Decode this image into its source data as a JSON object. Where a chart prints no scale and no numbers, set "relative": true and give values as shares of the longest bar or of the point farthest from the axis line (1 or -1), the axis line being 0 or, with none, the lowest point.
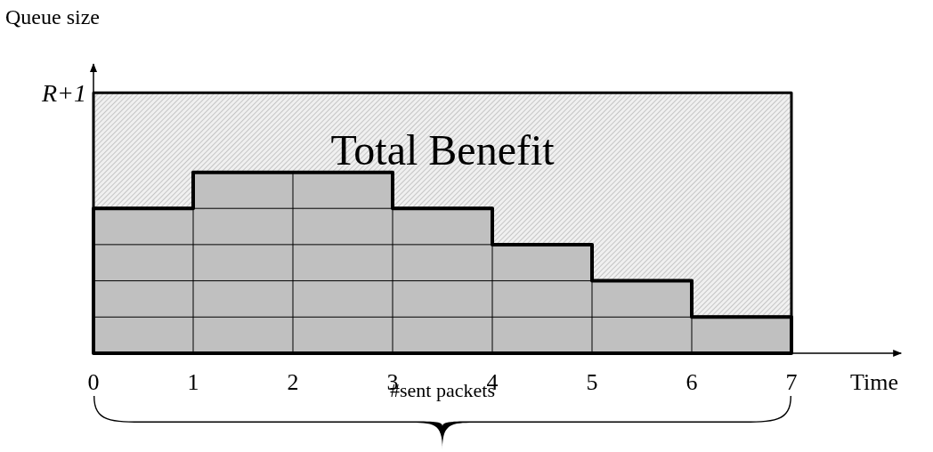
{
  "chart_data": {
    "type": "area",
    "stacked": true,
    "xlabel": "Time",
    "ylabel": "Queue size",
    "xlim": [
      0,
      8.1
    ],
    "xticks": [
      0,
      1,
      2,
      3,
      4,
      5,
      6,
      7
    ],
    "relative": true,
    "series": [
      {
        "x": [
          0,
          1,
          2,
          3,
          4,
          5,
          6,
          7
        ],
        "values": [
          0.556,
          0.694,
          0.694,
          0.556,
          0.417,
          0.278,
          0.139,
          0.139
        ],
        "color": "#c0c0c0"
      },
      {
        "x": [
          0,
          1,
          2,
          3,
          4,
          5,
          6,
          7
        ],
        "values": [
          0.444,
          0.306,
          0.306,
          0.444,
          0.583,
          0.722,
          0.861,
          0.861
        ],
        "color": "#000000"
      }
    ],
    "annotations": [
      "R+1",
      "Total Benefit",
      "#sent packets"
    ]
  }
}
